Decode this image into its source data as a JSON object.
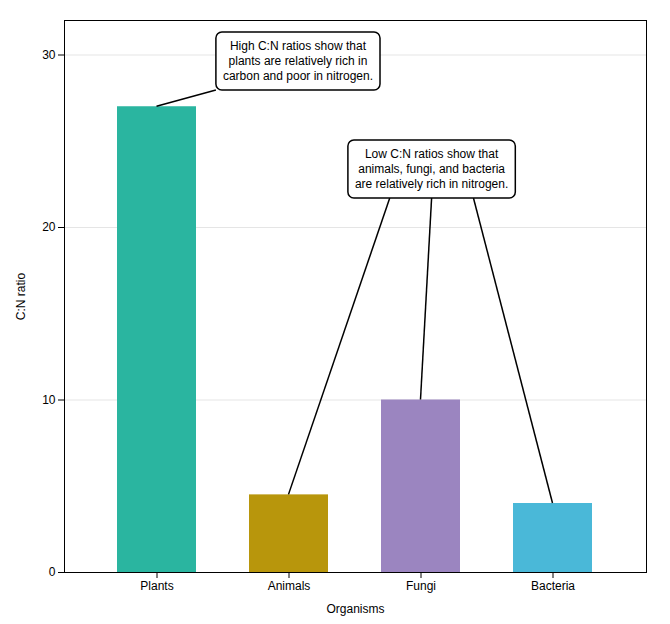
{
  "chart_data": {
    "type": "bar",
    "categories": [
      "Plants",
      "Animals",
      "Fungi",
      "Bacteria"
    ],
    "values": [
      27.0,
      4.5,
      10.0,
      4.0
    ],
    "colors": [
      "#2ab5a0",
      "#b8960c",
      "#9b85c0",
      "#4ab8d8"
    ],
    "xlabel": "Organisms",
    "ylabel": "C:N ratio",
    "ylim": [
      0,
      32
    ],
    "yticks": [
      0,
      10,
      20,
      30
    ],
    "grid": true,
    "annotations": [
      {
        "text": "High C:N ratios show that\nplants are relatively rich in\ncarbon and poor in nitrogen.",
        "targets": [
          "Plants"
        ]
      },
      {
        "text": "Low C:N ratios show that\nanimals, fungi, and bacteria\nare relatively rich in nitrogen.",
        "targets": [
          "Animals",
          "Fungi",
          "Bacteria"
        ]
      }
    ]
  }
}
